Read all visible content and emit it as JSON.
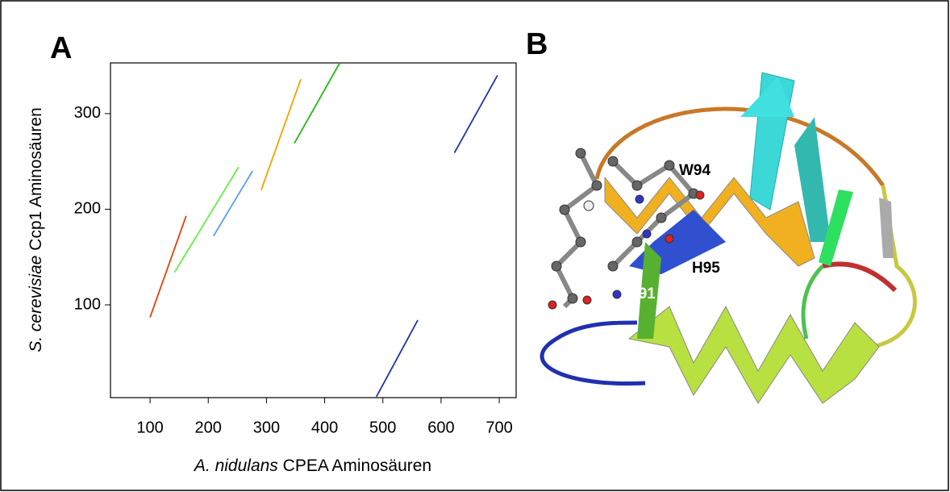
{
  "panel_a": {
    "label": "A"
  },
  "panel_b": {
    "label": "B",
    "residues": [
      "W94",
      "H95",
      "R91"
    ]
  },
  "chart_data": {
    "type": "line",
    "xlabel": {
      "italic": "A. nidulans",
      "rest": "CPEA Aminosäuren"
    },
    "ylabel": {
      "italic": "S. cerevisiae",
      "rest": "Ccp1 Aminosäuren"
    },
    "xlim": [
      32,
      729
    ],
    "ylim": [
      3,
      353
    ],
    "xticks": [
      100,
      200,
      300,
      400,
      500,
      600,
      700
    ],
    "yticks": [
      100,
      200,
      300
    ],
    "series": [
      {
        "color": "#e8400a",
        "x": [
          100,
          162
        ],
        "values": [
          87,
          193
        ]
      },
      {
        "color": "#66ee44",
        "x": [
          142,
          252
        ],
        "values": [
          134,
          244
        ]
      },
      {
        "color": "#5aa0f0",
        "x": [
          209,
          276
        ],
        "values": [
          172,
          240
        ]
      },
      {
        "color": "#f5a000",
        "x": [
          291,
          359
        ],
        "values": [
          220,
          336
        ]
      },
      {
        "color": "#22bb11",
        "x": [
          348,
          426
        ],
        "values": [
          269,
          353
        ]
      },
      {
        "color": "#2233aa",
        "x": [
          623,
          697
        ],
        "values": [
          259,
          340
        ]
      },
      {
        "color": "#2233aa",
        "x": [
          489,
          560
        ],
        "values": [
          4,
          84
        ]
      }
    ]
  }
}
